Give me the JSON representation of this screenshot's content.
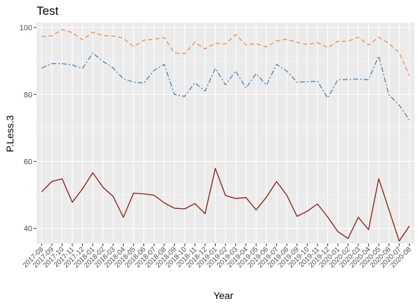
{
  "chart_data": {
    "type": "line",
    "title": "Test",
    "xlabel": "Year",
    "ylabel": "P.Less.3",
    "ylim": [
      35.5,
      101.5
    ],
    "yticks": [
      40,
      60,
      80,
      100
    ],
    "grid": true,
    "legend": "none",
    "colors": {
      "panel": "#ebebeb",
      "grid": "#ffffff",
      "tick": "#333333"
    },
    "categories": [
      "2017-08",
      "2017-09",
      "2017-10",
      "2017-11",
      "2017-12",
      "2018-01",
      "2018-02",
      "2018-03",
      "2018-04",
      "2018-05",
      "2018-06",
      "2018-07",
      "2018-08",
      "2018-09",
      "2018-10",
      "2018-11",
      "2018-12",
      "2019-01",
      "2019-02",
      "2019-03",
      "2019-04",
      "2019-05",
      "2019-06",
      "2019-07",
      "2019-08",
      "2019-09",
      "2019-10",
      "2019-11",
      "2019-12",
      "2020-01",
      "2020-02",
      "2020-03",
      "2020-04",
      "2020-05",
      "2020-06",
      "2020-07",
      "2020-08"
    ],
    "series": [
      {
        "color": "#f4874f",
        "dash": "6,4",
        "values": [
          97.3,
          97.5,
          99.4,
          98.5,
          96.3,
          98.6,
          97.6,
          97.5,
          96.8,
          94.3,
          96.2,
          96.5,
          97.0,
          92.4,
          92.2,
          95.6,
          93.6,
          95.3,
          95.1,
          97.9,
          94.8,
          95.2,
          94.2,
          96.0,
          96.5,
          95.6,
          94.9,
          95.5,
          94.0,
          95.9,
          95.9,
          97.1,
          94.8,
          97.1,
          95.2,
          92.5,
          85.6
        ]
      },
      {
        "color": "#4682b4",
        "dash": "7,3,2,3",
        "values": [
          87.9,
          89.2,
          89.2,
          88.8,
          87.8,
          92.4,
          89.9,
          87.9,
          84.7,
          83.7,
          83.4,
          87.2,
          89.0,
          80.0,
          79.4,
          83.5,
          81.0,
          87.8,
          82.9,
          87.0,
          81.9,
          86.2,
          82.8,
          89.0,
          87.0,
          83.7,
          83.8,
          84.0,
          78.9,
          84.4,
          84.5,
          84.6,
          84.4,
          91.5,
          79.9,
          76.8,
          72.4
        ]
      },
      {
        "color": "#8b1a10",
        "dash": "",
        "values": [
          50.9,
          54.0,
          54.8,
          47.8,
          51.8,
          56.6,
          52.3,
          49.5,
          43.3,
          50.5,
          50.3,
          49.9,
          47.6,
          46.0,
          45.8,
          47.4,
          44.4,
          57.9,
          49.8,
          48.9,
          49.2,
          45.5,
          49.3,
          54.0,
          49.9,
          43.6,
          45.1,
          47.3,
          43.4,
          39.0,
          37.0,
          43.3,
          39.6,
          54.8,
          45.6,
          36.2,
          40.7
        ]
      }
    ]
  }
}
